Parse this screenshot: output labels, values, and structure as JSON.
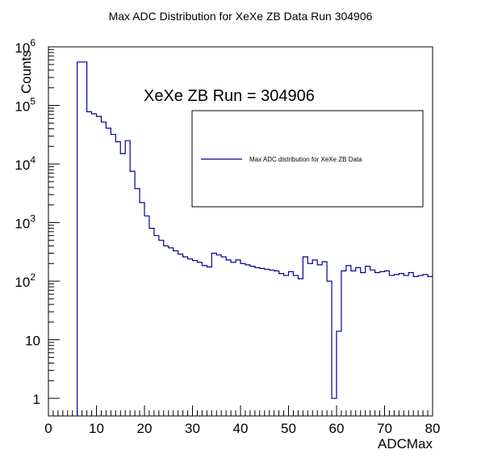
{
  "chart_data": {
    "type": "histogram",
    "title": "Max ADC Distribution for XeXe ZB Data Run 304906",
    "xlabel": "ADCMax",
    "ylabel": "Counts",
    "annotation": "XeXe ZB Run = 304906",
    "legend": {
      "placement": "top-right",
      "entries": [
        "Max ADC distribution for XeXe ZB Data"
      ]
    },
    "xlim": [
      0,
      80
    ],
    "ylim": [
      0.5,
      1000000
    ],
    "yscale": "log",
    "bin_width": 1,
    "x_ticks": [
      "0",
      "10",
      "20",
      "30",
      "40",
      "50",
      "60",
      "70",
      "80"
    ],
    "y_ticks": [
      {
        "value": 1,
        "base": "1",
        "exp": ""
      },
      {
        "value": 10,
        "base": "10",
        "exp": ""
      },
      {
        "value": 100,
        "base": "10",
        "exp": "2"
      },
      {
        "value": 1000,
        "base": "10",
        "exp": "3"
      },
      {
        "value": 10000,
        "base": "10",
        "exp": "4"
      },
      {
        "value": 100000,
        "base": "10",
        "exp": "5"
      },
      {
        "value": 1000000,
        "base": "10",
        "exp": "6"
      }
    ],
    "line_color": "#000099",
    "series": [
      {
        "name": "Max ADC distribution for XeXe ZB Data",
        "bins_start": 6,
        "values": [
          550000,
          550000,
          78000,
          72000,
          65000,
          52000,
          41000,
          32000,
          24000,
          15000,
          25000,
          7500,
          3800,
          2200,
          1300,
          800,
          600,
          500,
          400,
          370,
          330,
          290,
          260,
          240,
          225,
          210,
          185,
          175,
          300,
          280,
          260,
          230,
          210,
          230,
          200,
          190,
          180,
          170,
          165,
          160,
          155,
          150,
          135,
          125,
          145,
          125,
          110,
          260,
          200,
          230,
          190,
          215,
          100,
          1,
          14,
          150,
          185,
          150,
          170,
          140,
          180,
          155,
          140,
          145,
          150,
          125,
          130,
          135,
          125,
          140,
          120,
          125,
          130,
          120
        ]
      }
    ]
  }
}
